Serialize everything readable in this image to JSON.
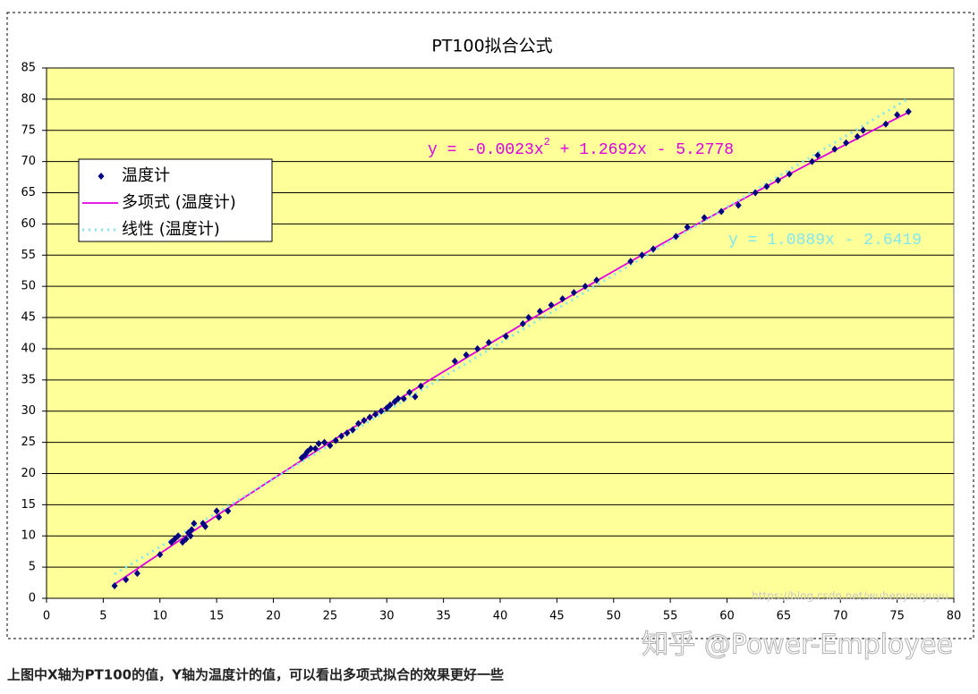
{
  "chart_data": {
    "type": "scatter",
    "title": "PT100拟合公式",
    "xlim": [
      0,
      80
    ],
    "ylim": [
      0,
      85
    ],
    "xticks": [
      0,
      5,
      10,
      15,
      20,
      25,
      30,
      35,
      40,
      45,
      50,
      55,
      60,
      65,
      70,
      75,
      80
    ],
    "yticks": [
      0,
      5,
      10,
      15,
      20,
      25,
      30,
      35,
      40,
      45,
      50,
      55,
      60,
      65,
      70,
      75,
      80,
      85
    ],
    "grid": true,
    "plot_background": "#ffff99",
    "series": [
      {
        "name": "温度计",
        "color": "#000080",
        "x": [
          6,
          7,
          8,
          10,
          11,
          11.3,
          11.6,
          12,
          12.3,
          12.5,
          12.7,
          12.8,
          13,
          13.8,
          14,
          15,
          15.2,
          16,
          22.5,
          22.8,
          23,
          23.3,
          23.7,
          24,
          24.5,
          25,
          25.5,
          26,
          26.5,
          27,
          27.5,
          28,
          28.5,
          29,
          29.5,
          30,
          30.3,
          30.7,
          31,
          31.5,
          32,
          32.5,
          33,
          36,
          37,
          38,
          39,
          40.5,
          42,
          42.5,
          43.5,
          44.5,
          45.5,
          46.5,
          47.5,
          48.5,
          51.5,
          52.5,
          53.5,
          55.5,
          56.5,
          58,
          59.5,
          61,
          62.5,
          63.5,
          64.5,
          65.5,
          67.5,
          68,
          69.5,
          70.5,
          71.5,
          72,
          74,
          75,
          76
        ],
        "values": [
          2,
          3,
          4,
          7,
          9,
          9.5,
          10,
          9,
          9.5,
          10.5,
          10,
          11,
          12,
          12,
          11.5,
          14,
          13,
          14,
          22.5,
          23,
          23.5,
          24,
          24,
          24.8,
          25,
          24.5,
          25.3,
          26,
          26.5,
          27,
          28,
          28.5,
          29,
          29.5,
          30,
          30.5,
          31,
          31.5,
          32,
          32,
          33,
          32.3,
          34,
          38,
          39,
          40,
          41,
          42,
          44,
          45,
          46,
          47,
          48,
          49,
          50,
          51,
          54,
          55,
          56,
          58,
          59.5,
          61,
          62,
          63,
          65,
          66,
          67,
          68,
          70,
          71,
          72,
          73,
          74,
          75,
          76,
          77.5,
          78
        ]
      }
    ],
    "trendlines": [
      {
        "name": "多项式 (温度计)",
        "type": "polynomial",
        "color": "#e000e0",
        "coefficients": [
          -0.0023,
          1.2692,
          -5.2778
        ],
        "equation": {
          "before": "y = -0.0023x",
          "sup": "2",
          "after": " + 1.2692x - 5.2778"
        }
      },
      {
        "name": "线性 (温度计)",
        "type": "linear",
        "color": "#80e8f0",
        "coefficients": [
          1.0889,
          -2.6419
        ],
        "equation": {
          "before": "y = 1.0889x - 2.6419"
        }
      }
    ]
  },
  "watermark": {
    "site": "知乎 @Power-Employee",
    "url": "https://blog.csdn.net/wuhenyouyuyu"
  },
  "caption": "上图中X轴为PT100的值，Y轴为温度计的值，可以看出多项式拟合的效果更好一些"
}
